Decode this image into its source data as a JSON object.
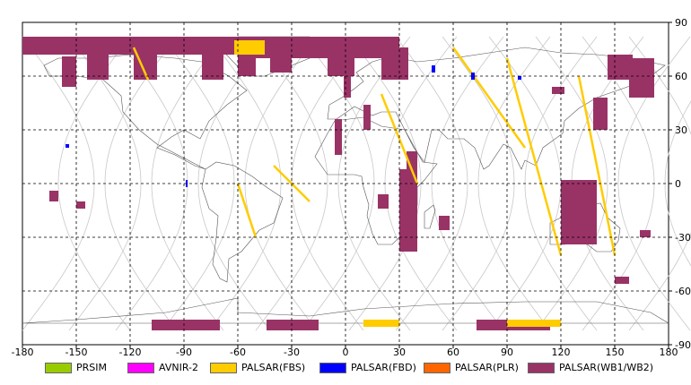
{
  "map": {
    "lon_range": [
      -180,
      180
    ],
    "lat_range": [
      -90,
      90
    ],
    "lon_ticks": [
      "-180",
      "-150",
      "-120",
      "-90",
      "-60",
      "-30",
      "0",
      "30",
      "60",
      "90",
      "120",
      "150",
      "180"
    ],
    "lat_ticks": [
      "90",
      "60",
      "30",
      "0",
      "-30",
      "-60",
      "-90"
    ],
    "gridline_style": "dashed",
    "orbit_tracks": "light gray sinusoidal ground tracks"
  },
  "legend": [
    {
      "label": "PRSIM",
      "color": "#99cc00"
    },
    {
      "label": "AVNIR-2",
      "color": "#ff00ff"
    },
    {
      "label": "PALSAR(FBS)",
      "color": "#ffcc00"
    },
    {
      "label": "PALSAR(FBD)",
      "color": "#0000ff"
    },
    {
      "label": "PALSAR(PLR)",
      "color": "#ff6600"
    },
    {
      "label": "PALSAR(WB1/WB2)",
      "color": "#993366"
    }
  ],
  "swaths": [
    {
      "mode": "PALSAR(WB1/WB2)",
      "lon": [
        -180,
        -60
      ],
      "lat": [
        72,
        82
      ]
    },
    {
      "mode": "PALSAR(WB1/WB2)",
      "lon": [
        -60,
        30
      ],
      "lat": [
        70,
        82
      ]
    },
    {
      "mode": "PALSAR(WB1/WB2)",
      "lon": [
        -158,
        -150
      ],
      "lat": [
        54,
        71
      ]
    },
    {
      "mode": "PALSAR(WB1/WB2)",
      "lon": [
        -144,
        -132
      ],
      "lat": [
        58,
        72
      ]
    },
    {
      "mode": "PALSAR(WB1/WB2)",
      "lon": [
        -118,
        -105
      ],
      "lat": [
        58,
        74
      ]
    },
    {
      "mode": "PALSAR(WB1/WB2)",
      "lon": [
        -80,
        -68
      ],
      "lat": [
        58,
        74
      ]
    },
    {
      "mode": "PALSAR(WB1/WB2)",
      "lon": [
        -60,
        -50
      ],
      "lat": [
        60,
        72
      ]
    },
    {
      "mode": "PALSAR(WB1/WB2)",
      "lon": [
        -42,
        -30
      ],
      "lat": [
        62,
        76
      ]
    },
    {
      "mode": "PALSAR(WB1/WB2)",
      "lon": [
        -10,
        5
      ],
      "lat": [
        60,
        76
      ]
    },
    {
      "mode": "PALSAR(WB1/WB2)",
      "lon": [
        20,
        35
      ],
      "lat": [
        58,
        76
      ]
    },
    {
      "mode": "PALSAR(WB1/WB2)",
      "lon": [
        -1,
        3
      ],
      "lat": [
        48,
        60
      ]
    },
    {
      "mode": "PALSAR(WB1/WB2)",
      "lon": [
        10,
        14
      ],
      "lat": [
        30,
        44
      ]
    },
    {
      "mode": "PALSAR(WB1/WB2)",
      "lon": [
        -6,
        -2
      ],
      "lat": [
        16,
        36
      ]
    },
    {
      "mode": "PALSAR(WB1/WB2)",
      "lon": [
        34,
        40
      ],
      "lat": [
        -12,
        18
      ]
    },
    {
      "mode": "PALSAR(WB1/WB2)",
      "lon": [
        30,
        40
      ],
      "lat": [
        -38,
        8
      ]
    },
    {
      "mode": "PALSAR(WB1/WB2)",
      "lon": [
        18,
        24
      ],
      "lat": [
        -6,
        -14
      ]
    },
    {
      "mode": "PALSAR(WB1/WB2)",
      "lon": [
        52,
        58
      ],
      "lat": [
        -18,
        -26
      ]
    },
    {
      "mode": "PALSAR(WB1/WB2)",
      "lon": [
        115,
        122
      ],
      "lat": [
        50,
        54
      ]
    },
    {
      "mode": "PALSAR(WB1/WB2)",
      "lon": [
        138,
        146
      ],
      "lat": [
        30,
        48
      ]
    },
    {
      "mode": "PALSAR(WB1/WB2)",
      "lon": [
        146,
        160
      ],
      "lat": [
        58,
        72
      ]
    },
    {
      "mode": "PALSAR(WB1/WB2)",
      "lon": [
        158,
        172
      ],
      "lat": [
        48,
        70
      ]
    },
    {
      "mode": "PALSAR(WB1/WB2)",
      "lon": [
        120,
        140
      ],
      "lat": [
        -34,
        2
      ]
    },
    {
      "mode": "PALSAR(WB1/WB2)",
      "lon": [
        164,
        170
      ],
      "lat": [
        -26,
        -30
      ]
    },
    {
      "mode": "PALSAR(WB1/WB2)",
      "lon": [
        150,
        158
      ],
      "lat": [
        -52,
        -56
      ]
    },
    {
      "mode": "PALSAR(WB1/WB2)",
      "lon": [
        -165,
        -160
      ],
      "lat": [
        -4,
        -10
      ]
    },
    {
      "mode": "PALSAR(WB1/WB2)",
      "lon": [
        -150,
        -145
      ],
      "lat": [
        -10,
        -14
      ]
    },
    {
      "mode": "PALSAR(WB1/WB2)",
      "lon": [
        -108,
        -70
      ],
      "lat": [
        -76,
        -82
      ]
    },
    {
      "mode": "PALSAR(WB1/WB2)",
      "lon": [
        -44,
        -15
      ],
      "lat": [
        -76,
        -82
      ]
    },
    {
      "mode": "PALSAR(WB1/WB2)",
      "lon": [
        73,
        114
      ],
      "lat": [
        -76,
        -82
      ]
    },
    {
      "mode": "PALSAR(FBS)",
      "lon": [
        -118,
        -110
      ],
      "lat": [
        58,
        76
      ]
    },
    {
      "mode": "PALSAR(FBS)",
      "lon": [
        -62,
        -45
      ],
      "lat": [
        72,
        80
      ]
    },
    {
      "mode": "PALSAR(FBS)",
      "lon": [
        60,
        100
      ],
      "lat": [
        20,
        76
      ]
    },
    {
      "mode": "PALSAR(FBS)",
      "lon": [
        90,
        120
      ],
      "lat": [
        -40,
        70
      ]
    },
    {
      "mode": "PALSAR(FBS)",
      "lon": [
        130,
        150
      ],
      "lat": [
        -40,
        60
      ]
    },
    {
      "mode": "PALSAR(FBS)",
      "lon": [
        -40,
        -20
      ],
      "lat": [
        -10,
        10
      ]
    },
    {
      "mode": "PALSAR(FBS)",
      "lon": [
        -60,
        -50
      ],
      "lat": [
        -30,
        0
      ]
    },
    {
      "mode": "PALSAR(FBS)",
      "lon": [
        20,
        40
      ],
      "lat": [
        0,
        50
      ]
    },
    {
      "mode": "PALSAR(FBS)",
      "lon": [
        10,
        30
      ],
      "lat": [
        -76,
        -80
      ]
    },
    {
      "mode": "PALSAR(FBS)",
      "lon": [
        90,
        120
      ],
      "lat": [
        -76,
        -80
      ]
    },
    {
      "mode": "PALSAR(FBD)",
      "lon": [
        48,
        50
      ],
      "lat": [
        62,
        66
      ]
    },
    {
      "mode": "PALSAR(FBD)",
      "lon": [
        70,
        72
      ],
      "lat": [
        58,
        62
      ]
    },
    {
      "mode": "PALSAR(FBD)",
      "lon": [
        96,
        98
      ],
      "lat": [
        58,
        60
      ]
    },
    {
      "mode": "PALSAR(FBD)",
      "lon": [
        -156,
        -154
      ],
      "lat": [
        20,
        22
      ]
    },
    {
      "mode": "PALSAR(FBD)",
      "lon": [
        -89,
        -88
      ],
      "lat": [
        -2,
        2
      ]
    }
  ]
}
